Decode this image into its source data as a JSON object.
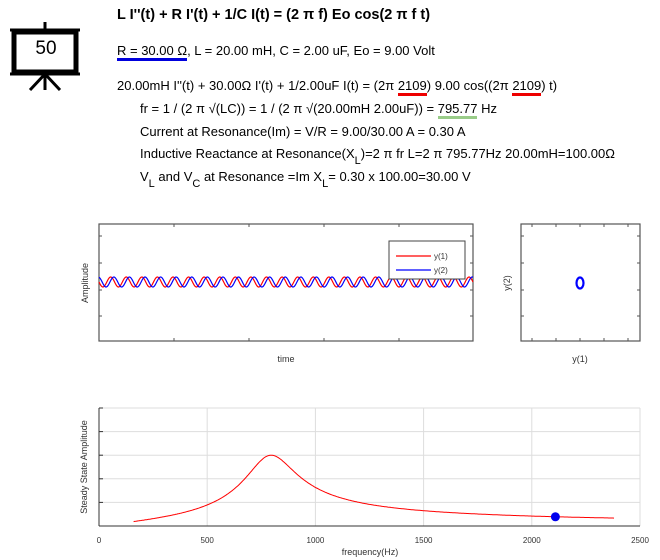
{
  "slide_badge": "50",
  "equation_title": "L I''(t) + R I'(t) + 1/C I(t) = (2 π f) Eo cos(2 π f t)",
  "params": {
    "r_text": "R = 30.00 Ω",
    "rest_text": ", L = 20.00 mH, C = 2.00 uF, Eo = 9.00 Volt",
    "R": 30,
    "L_mH": 20,
    "C_uF": 2,
    "Eo": 9
  },
  "substituted": {
    "part1": "20.00mH I''(t) + 30.00Ω I'(t) + 1/2.00uF I(t) = (2π ",
    "freq1": "2109",
    "part2": ") 9.00 cos((2π ",
    "freq2": "2109",
    "part3": ") t)"
  },
  "resonance": {
    "fr_prefix": "fr = 1 / (2 π √(LC)) = 1 / (2 π √(20.00mH 2.00uF)) = ",
    "fr_value": "795.77",
    "fr_unit": " Hz",
    "current": "Current at Resonance(Im) = V/R = 9.00/30.00 A = 0.30 A",
    "xl_a": "Inductive Reactance at Resonance(X",
    "xl_sub": "L",
    "xl_b": ")=2 π fr L=2 π 795.77Hz 20.00mH=100.00Ω",
    "v_a": "V",
    "v_sub1": "L",
    "v_b": " and V",
    "v_sub2": "C",
    "v_c": " at Resonance =Im X",
    "v_sub3": "L",
    "v_d": "= 0.30 x 100.00=30.00 V"
  },
  "colors": {
    "y1": "#ff0000",
    "y2": "#0000ff",
    "response": "#ff0000",
    "marker": "#0000ee",
    "r_underline": "#0000dd",
    "f_underline": "#ee0000",
    "fr_underline": "#99cc88"
  },
  "chart_data": [
    {
      "type": "line",
      "xlabel": "time",
      "ylabel": "Amplitude",
      "legend": "top-right",
      "series": [
        {
          "name": "y(1)",
          "color": "#ff0000"
        },
        {
          "name": "y(2)",
          "color": "#0000ff"
        }
      ],
      "frequency_hz": 2109
    },
    {
      "type": "line",
      "xlabel": "y(1)",
      "ylabel": "y(2)"
    },
    {
      "type": "line",
      "xlabel": "frequency(Hz)",
      "ylabel": "Steady State Amplitude",
      "xlim": [
        0,
        2500
      ],
      "ylim": [
        0,
        0.5
      ],
      "x_ticks": [
        "0",
        "500",
        "1000",
        "1500",
        "2000",
        "2500"
      ],
      "grid": true,
      "curve_x_range": [
        160,
        2380
      ],
      "peak": {
        "x": 795.77,
        "y": 0.3
      },
      "marker": {
        "x": 2109,
        "y": 0.039
      }
    }
  ]
}
